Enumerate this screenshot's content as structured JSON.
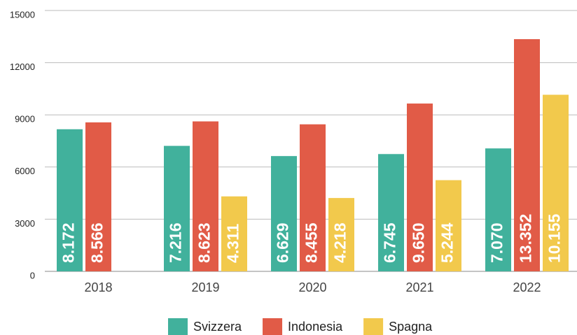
{
  "chart_data": {
    "type": "bar",
    "categories": [
      "2018",
      "2019",
      "2020",
      "2021",
      "2022"
    ],
    "series": [
      {
        "name": "Svizzera",
        "color": "#41b19c",
        "values": [
          8172,
          7216,
          6629,
          6745,
          7070
        ],
        "value_labels": [
          "8.172",
          "7.216",
          "6.629",
          "6.745",
          "7.070"
        ]
      },
      {
        "name": "Indonesia",
        "color": "#e15b47",
        "values": [
          8566,
          8623,
          8455,
          9650,
          13352
        ],
        "value_labels": [
          "8.566",
          "8.623",
          "8.455",
          "9.650",
          "13.352"
        ]
      },
      {
        "name": "Spagna",
        "color": "#f2c94c",
        "values": [
          null,
          4311,
          4218,
          5244,
          10155
        ],
        "value_labels": [
          null,
          "4.311",
          "4.218",
          "5.244",
          "10.155"
        ]
      }
    ],
    "ylim": [
      0,
      15000
    ],
    "yticks": [
      0,
      3000,
      6000,
      9000,
      12000,
      15000
    ],
    "grid": true,
    "legend": "bottom"
  }
}
